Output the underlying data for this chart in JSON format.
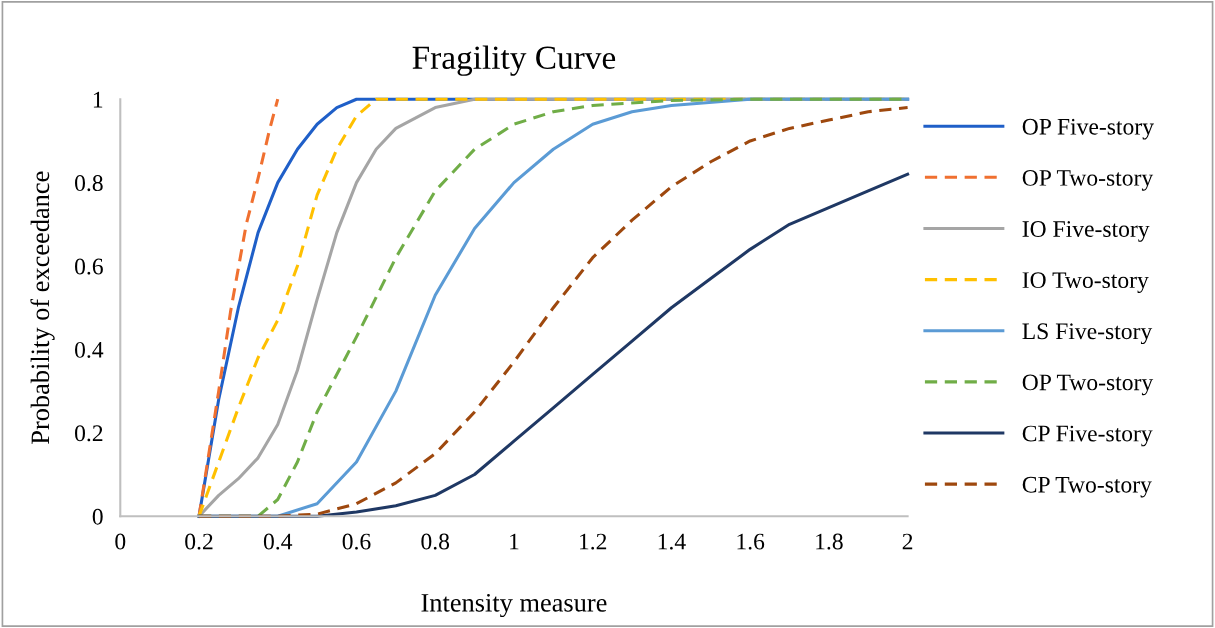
{
  "chart_data": {
    "type": "line",
    "title": "Fragility Curve",
    "xlabel": "Intensity measure",
    "ylabel": "Probability of exceedance",
    "xlim": [
      0,
      2
    ],
    "ylim": [
      0,
      1
    ],
    "xticks": [
      0,
      0.2,
      0.4,
      0.6,
      0.8,
      1,
      1.2,
      1.4,
      1.6,
      1.8,
      2
    ],
    "yticks": [
      0,
      0.2,
      0.4,
      0.6,
      0.8,
      1
    ],
    "grid": false,
    "legend": "right",
    "marker": "none",
    "series": [
      {
        "name": "OP Five-story",
        "color": "#1f5fc8",
        "line_style": "solid",
        "x": [
          0.2,
          0.25,
          0.3,
          0.35,
          0.4,
          0.45,
          0.5,
          0.55,
          0.6,
          2
        ],
        "values": [
          0,
          0.28,
          0.5,
          0.68,
          0.8,
          0.88,
          0.94,
          0.98,
          1,
          1
        ]
      },
      {
        "name": "OP Two-story",
        "color": "#f07030",
        "line_style": "dashed",
        "x": [
          0.2,
          0.25,
          0.28,
          0.32,
          0.35,
          0.38,
          0.4
        ],
        "values": [
          0,
          0.3,
          0.49,
          0.7,
          0.81,
          0.93,
          1
        ]
      },
      {
        "name": "IO Five-story",
        "color": "#a5a5a5",
        "line_style": "solid",
        "x": [
          0.2,
          0.25,
          0.3,
          0.35,
          0.4,
          0.45,
          0.5,
          0.55,
          0.6,
          0.65,
          0.7,
          0.8,
          0.9,
          2
        ],
        "values": [
          0,
          0.05,
          0.09,
          0.14,
          0.22,
          0.35,
          0.52,
          0.68,
          0.8,
          0.88,
          0.93,
          0.98,
          1,
          1
        ]
      },
      {
        "name": "IO Two-story",
        "color": "#ffc000",
        "line_style": "dashed",
        "x": [
          0.2,
          0.25,
          0.3,
          0.35,
          0.4,
          0.45,
          0.5,
          0.55,
          0.6,
          0.65,
          2
        ],
        "values": [
          0,
          0.13,
          0.26,
          0.38,
          0.47,
          0.6,
          0.77,
          0.88,
          0.96,
          1,
          1
        ]
      },
      {
        "name": "LS Five-story",
        "color": "#5b9bd5",
        "line_style": "solid",
        "x": [
          0.2,
          0.4,
          0.5,
          0.6,
          0.7,
          0.8,
          0.9,
          1,
          1.1,
          1.2,
          1.3,
          1.4,
          1.6,
          2
        ],
        "values": [
          0,
          0,
          0.03,
          0.13,
          0.3,
          0.53,
          0.69,
          0.8,
          0.88,
          0.94,
          0.97,
          0.985,
          1,
          1
        ]
      },
      {
        "name": "OP Two-story",
        "color": "#70ad47",
        "line_style": "dashed",
        "x": [
          0.2,
          0.35,
          0.4,
          0.45,
          0.5,
          0.6,
          0.7,
          0.8,
          0.9,
          1,
          1.1,
          1.2,
          1.4,
          1.6,
          2
        ],
        "values": [
          0,
          0,
          0.04,
          0.13,
          0.25,
          0.43,
          0.62,
          0.78,
          0.88,
          0.94,
          0.97,
          0.985,
          0.997,
          1,
          1
        ]
      },
      {
        "name": "CP Five-story",
        "color": "#1f3864",
        "line_style": "solid",
        "x": [
          0.2,
          0.5,
          0.6,
          0.7,
          0.8,
          0.9,
          1,
          1.1,
          1.2,
          1.3,
          1.4,
          1.5,
          1.6,
          1.7,
          1.8,
          1.9,
          2
        ],
        "values": [
          0,
          0,
          0.01,
          0.025,
          0.05,
          0.1,
          0.18,
          0.26,
          0.34,
          0.42,
          0.5,
          0.57,
          0.64,
          0.7,
          0.74,
          0.78,
          0.82
        ]
      },
      {
        "name": "CP Two-story",
        "color": "#9e480e",
        "line_style": "dashed",
        "x": [
          0.2,
          0.4,
          0.5,
          0.6,
          0.7,
          0.8,
          0.9,
          1,
          1.1,
          1.2,
          1.3,
          1.4,
          1.5,
          1.6,
          1.7,
          1.8,
          1.9,
          2
        ],
        "values": [
          0,
          0,
          0.005,
          0.03,
          0.08,
          0.15,
          0.25,
          0.37,
          0.5,
          0.62,
          0.71,
          0.79,
          0.85,
          0.9,
          0.93,
          0.95,
          0.97,
          0.98
        ]
      }
    ]
  }
}
